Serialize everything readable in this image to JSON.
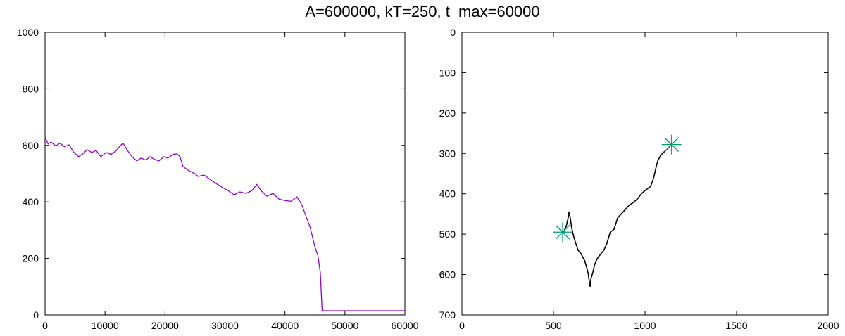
{
  "title": "A=600000, kT=250, t  max=60000",
  "colors": {
    "time_series": "#9400d3",
    "trajectory": "#000000",
    "markers": "#009e73",
    "axes": "#000000"
  },
  "chart_data": [
    {
      "type": "line",
      "title": "",
      "xlabel": "",
      "ylabel": "",
      "xlim": [
        0,
        60000
      ],
      "ylim": [
        0,
        1000
      ],
      "x_ticks": [
        0,
        10000,
        20000,
        30000,
        40000,
        50000,
        60000
      ],
      "y_ticks": [
        0,
        200,
        400,
        600,
        800,
        1000
      ],
      "grid": false,
      "series": [
        {
          "points": [
            [
              0,
              630
            ],
            [
              500,
              605
            ],
            [
              1000,
              612
            ],
            [
              1800,
              598
            ],
            [
              2500,
              608
            ],
            [
              3200,
              595
            ],
            [
              4000,
              602
            ],
            [
              4800,
              575
            ],
            [
              5600,
              560
            ],
            [
              6300,
              570
            ],
            [
              7000,
              585
            ],
            [
              7800,
              575
            ],
            [
              8500,
              582
            ],
            [
              9300,
              560
            ],
            [
              10200,
              575
            ],
            [
              11000,
              568
            ],
            [
              11800,
              580
            ],
            [
              12500,
              598
            ],
            [
              13000,
              608
            ],
            [
              13800,
              580
            ],
            [
              14500,
              560
            ],
            [
              15300,
              545
            ],
            [
              16000,
              555
            ],
            [
              16800,
              548
            ],
            [
              17500,
              560
            ],
            [
              18300,
              550
            ],
            [
              19000,
              545
            ],
            [
              19800,
              560
            ],
            [
              20500,
              555
            ],
            [
              21300,
              568
            ],
            [
              22000,
              570
            ],
            [
              22500,
              560
            ],
            [
              23000,
              525
            ],
            [
              24000,
              510
            ],
            [
              25000,
              500
            ],
            [
              25500,
              490
            ],
            [
              26500,
              495
            ],
            [
              27500,
              480
            ],
            [
              28500,
              465
            ],
            [
              29500,
              452
            ],
            [
              30500,
              440
            ],
            [
              31500,
              425
            ],
            [
              32500,
              435
            ],
            [
              33500,
              430
            ],
            [
              34500,
              440
            ],
            [
              35300,
              462
            ],
            [
              36000,
              440
            ],
            [
              37000,
              420
            ],
            [
              38000,
              430
            ],
            [
              39000,
              410
            ],
            [
              40000,
              405
            ],
            [
              41000,
              402
            ],
            [
              42000,
              418
            ],
            [
              42800,
              390
            ],
            [
              43500,
              350
            ],
            [
              44200,
              310
            ],
            [
              45000,
              240
            ],
            [
              45500,
              210
            ],
            [
              45900,
              150
            ],
            [
              46100,
              60
            ],
            [
              46200,
              15
            ],
            [
              47000,
              15
            ],
            [
              60000,
              15
            ]
          ]
        }
      ]
    },
    {
      "type": "scatter",
      "title": "",
      "xlabel": "",
      "ylabel": "",
      "xlim": [
        0,
        2000
      ],
      "ylim": [
        700,
        0
      ],
      "y_inverted": true,
      "x_ticks": [
        0,
        500,
        1000,
        1500,
        2000
      ],
      "y_ticks": [
        0,
        100,
        200,
        300,
        400,
        500,
        600,
        700
      ],
      "grid": false,
      "series": [
        {
          "style": "path",
          "points": [
            [
              1145,
              278
            ],
            [
              1120,
              290
            ],
            [
              1100,
              298
            ],
            [
              1085,
              305
            ],
            [
              1070,
              318
            ],
            [
              1060,
              335
            ],
            [
              1050,
              355
            ],
            [
              1040,
              370
            ],
            [
              1030,
              382
            ],
            [
              1000,
              392
            ],
            [
              980,
              400
            ],
            [
              960,
              412
            ],
            [
              940,
              420
            ],
            [
              910,
              430
            ],
            [
              890,
              440
            ],
            [
              870,
              450
            ],
            [
              850,
              460
            ],
            [
              840,
              475
            ],
            [
              830,
              488
            ],
            [
              810,
              495
            ],
            [
              800,
              510
            ],
            [
              790,
              525
            ],
            [
              775,
              540
            ],
            [
              760,
              548
            ],
            [
              740,
              560
            ],
            [
              725,
              575
            ],
            [
              715,
              595
            ],
            [
              705,
              610
            ],
            [
              700,
              630
            ],
            [
              695,
              615
            ],
            [
              690,
              598
            ],
            [
              680,
              580
            ],
            [
              670,
              565
            ],
            [
              650,
              548
            ],
            [
              635,
              540
            ],
            [
              620,
              520
            ],
            [
              610,
              505
            ],
            [
              600,
              485
            ],
            [
              595,
              470
            ],
            [
              590,
              455
            ],
            [
              585,
              445
            ],
            [
              580,
              460
            ],
            [
              570,
              480
            ],
            [
              555,
              495
            ],
            [
              550,
              495
            ]
          ]
        },
        {
          "style": "star-markers",
          "points": [
            [
              550,
              495
            ],
            [
              1145,
              278
            ]
          ]
        }
      ]
    }
  ]
}
